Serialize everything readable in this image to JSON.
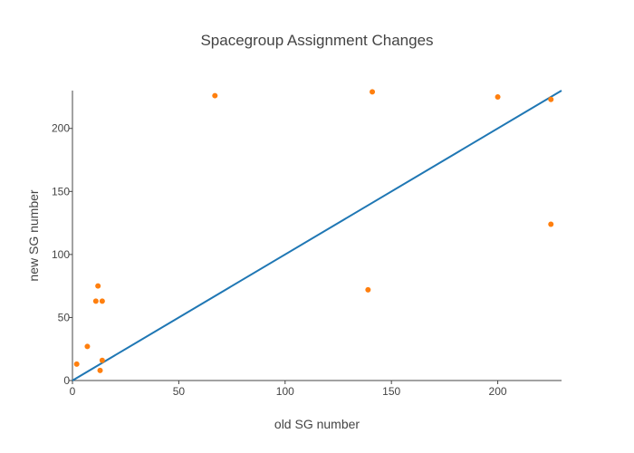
{
  "chart_data": {
    "type": "scatter",
    "title": "Spacegroup Assignment Changes",
    "xlabel": "old SG number",
    "ylabel": "new SG number",
    "xlim": [
      0,
      230
    ],
    "ylim": [
      0,
      230
    ],
    "xticks": [
      0,
      50,
      100,
      150,
      200
    ],
    "yticks": [
      0,
      50,
      100,
      150,
      200
    ],
    "grid": false,
    "legend": "none",
    "series": [
      {
        "type": "scatter",
        "color": "#ff7f0e",
        "points": [
          {
            "x": 2,
            "y": 13
          },
          {
            "x": 7,
            "y": 27
          },
          {
            "x": 11,
            "y": 63
          },
          {
            "x": 12,
            "y": 75
          },
          {
            "x": 13,
            "y": 8
          },
          {
            "x": 14,
            "y": 63
          },
          {
            "x": 14,
            "y": 16
          },
          {
            "x": 67,
            "y": 226
          },
          {
            "x": 139,
            "y": 72
          },
          {
            "x": 141,
            "y": 229
          },
          {
            "x": 200,
            "y": 225
          },
          {
            "x": 225,
            "y": 223
          },
          {
            "x": 225,
            "y": 124
          }
        ]
      },
      {
        "type": "line",
        "color": "#1f77b4",
        "points": [
          {
            "x": 0,
            "y": 0
          },
          {
            "x": 230,
            "y": 230
          }
        ]
      }
    ]
  }
}
